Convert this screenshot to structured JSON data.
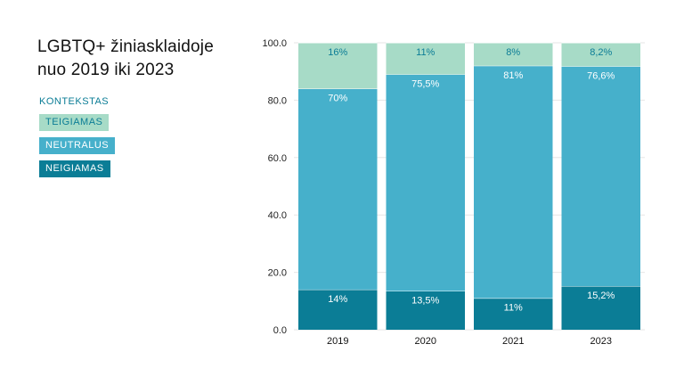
{
  "title_line1": "LGBTQ+ žiniasklaidoje",
  "title_line2": "nuo 2019 iki 2023",
  "legend_heading": "KONTEKSTAS",
  "colors": {
    "teigiamas": "#a7dbc7",
    "neutralus": "#46b0cb",
    "neigiamas": "#0b7d96",
    "legend_heading": "#0b7d96"
  },
  "chart_data": {
    "type": "bar",
    "stacked": true,
    "categories": [
      "2019",
      "2020",
      "2021",
      "2023"
    ],
    "series": [
      {
        "name": "NEIGIAMAS",
        "values": [
          14,
          13.5,
          11,
          15.2
        ],
        "labels": [
          "14%",
          "13,5%",
          "11%",
          "15,2%"
        ],
        "color": "#0b7d96",
        "label_color": "#ffffff"
      },
      {
        "name": "NEUTRALUS",
        "values": [
          70,
          75.5,
          81,
          76.6
        ],
        "labels": [
          "70%",
          "75,5%",
          "81%",
          "76,6%"
        ],
        "color": "#46b0cb",
        "label_color": "#ffffff"
      },
      {
        "name": "TEIGIAMAS",
        "values": [
          16,
          11,
          8,
          8.2
        ],
        "labels": [
          "16%",
          "11%",
          "8%",
          "8,2%"
        ],
        "color": "#a7dbc7",
        "label_color": "#0b7d96"
      }
    ],
    "legend_order": [
      "TEIGIAMAS",
      "NEUTRALUS",
      "NEIGIAMAS"
    ],
    "ylim": [
      0,
      100
    ],
    "yticks": [
      "0.0",
      "20.0",
      "40.0",
      "60.0",
      "80.0",
      "100.0"
    ],
    "grid": true,
    "legend_position": "left"
  }
}
